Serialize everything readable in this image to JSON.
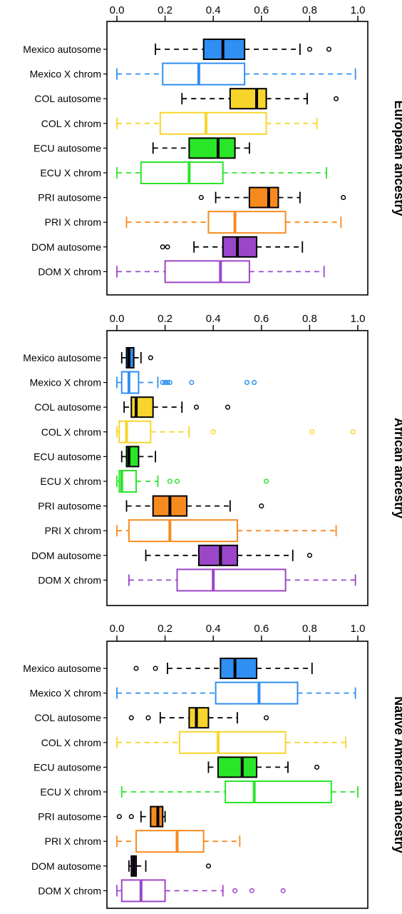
{
  "colors": {
    "Mexico": "#2f8ff2",
    "COL": "#f7d52a",
    "ECU": "#29e629",
    "PRI": "#f78a1f",
    "DOM": "#9b45c9"
  },
  "chart_data": [
    {
      "type": "boxplot",
      "title": "European ancestry",
      "xlim": [
        0,
        1
      ],
      "ticks": [
        "0.0",
        "0.2",
        "0.4",
        "0.6",
        "0.8",
        "1.0"
      ],
      "tick_values": [
        0,
        0.2,
        0.4,
        0.6,
        0.8,
        1.0
      ],
      "rows": [
        {
          "label": "Mexico autosome",
          "group": "Mexico",
          "kind": "autosome",
          "whisker_low": 0.16,
          "q1": 0.36,
          "median": 0.44,
          "q3": 0.53,
          "whisker_high": 0.76,
          "outliers": [
            0.8,
            0.88
          ]
        },
        {
          "label": "Mexico X chrom",
          "group": "Mexico",
          "kind": "X",
          "whisker_low": 0.0,
          "q1": 0.19,
          "median": 0.34,
          "q3": 0.53,
          "whisker_high": 0.99,
          "outliers": []
        },
        {
          "label": "COL autosome",
          "group": "COL",
          "kind": "autosome",
          "whisker_low": 0.27,
          "q1": 0.47,
          "median": 0.58,
          "q3": 0.62,
          "whisker_high": 0.79,
          "outliers": [
            0.91
          ]
        },
        {
          "label": "COL X chrom",
          "group": "COL",
          "kind": "X",
          "whisker_low": 0.0,
          "q1": 0.18,
          "median": 0.37,
          "q3": 0.62,
          "whisker_high": 0.83,
          "outliers": []
        },
        {
          "label": "ECU autosome",
          "group": "ECU",
          "kind": "autosome",
          "whisker_low": 0.15,
          "q1": 0.3,
          "median": 0.42,
          "q3": 0.49,
          "whisker_high": 0.55,
          "outliers": []
        },
        {
          "label": "ECU X chrom",
          "group": "ECU",
          "kind": "X",
          "whisker_low": 0.0,
          "q1": 0.1,
          "median": 0.3,
          "q3": 0.44,
          "whisker_high": 0.87,
          "outliers": []
        },
        {
          "label": "PRI autosome",
          "group": "PRI",
          "kind": "autosome",
          "whisker_low": 0.41,
          "q1": 0.55,
          "median": 0.63,
          "q3": 0.67,
          "whisker_high": 0.76,
          "outliers": [
            0.35,
            0.94
          ]
        },
        {
          "label": "PRI X chrom",
          "group": "PRI",
          "kind": "X",
          "whisker_low": 0.04,
          "q1": 0.38,
          "median": 0.49,
          "q3": 0.7,
          "whisker_high": 0.93,
          "outliers": []
        },
        {
          "label": "DOM autosome",
          "group": "DOM",
          "kind": "autosome",
          "whisker_low": 0.32,
          "q1": 0.44,
          "median": 0.5,
          "q3": 0.58,
          "whisker_high": 0.77,
          "outliers": [
            0.19,
            0.21
          ]
        },
        {
          "label": "DOM X chrom",
          "group": "DOM",
          "kind": "X",
          "whisker_low": 0.0,
          "q1": 0.2,
          "median": 0.43,
          "q3": 0.55,
          "whisker_high": 0.86,
          "outliers": []
        }
      ]
    },
    {
      "type": "boxplot",
      "title": "African ancestry",
      "xlim": [
        0,
        1
      ],
      "ticks": [
        "0.0",
        "0.2",
        "0.4",
        "0.6",
        "0.8",
        "1.0"
      ],
      "tick_values": [
        0,
        0.2,
        0.4,
        0.6,
        0.8,
        1.0
      ],
      "rows": [
        {
          "label": "Mexico autosome",
          "group": "Mexico",
          "kind": "autosome",
          "whisker_low": 0.02,
          "q1": 0.04,
          "median": 0.05,
          "q3": 0.07,
          "whisker_high": 0.1,
          "outliers": [
            0.14
          ]
        },
        {
          "label": "Mexico X chrom",
          "group": "Mexico",
          "kind": "X",
          "whisker_low": 0.0,
          "q1": 0.02,
          "median": 0.05,
          "q3": 0.09,
          "whisker_high": 0.17,
          "outliers": [
            0.19,
            0.2,
            0.21,
            0.22,
            0.31,
            0.54,
            0.57
          ]
        },
        {
          "label": "COL autosome",
          "group": "COL",
          "kind": "autosome",
          "whisker_low": 0.03,
          "q1": 0.06,
          "median": 0.08,
          "q3": 0.15,
          "whisker_high": 0.27,
          "outliers": [
            0.33,
            0.46
          ]
        },
        {
          "label": "COL X chrom",
          "group": "COL",
          "kind": "X",
          "whisker_low": 0.0,
          "q1": 0.01,
          "median": 0.04,
          "q3": 0.14,
          "whisker_high": 0.3,
          "outliers": [
            0.4,
            0.81,
            0.98
          ]
        },
        {
          "label": "ECU autosome",
          "group": "ECU",
          "kind": "autosome",
          "whisker_low": 0.02,
          "q1": 0.04,
          "median": 0.05,
          "q3": 0.09,
          "whisker_high": 0.16,
          "outliers": []
        },
        {
          "label": "ECU X chrom",
          "group": "ECU",
          "kind": "X",
          "whisker_low": 0.0,
          "q1": 0.01,
          "median": 0.02,
          "q3": 0.08,
          "whisker_high": 0.17,
          "outliers": [
            0.22,
            0.25,
            0.62
          ]
        },
        {
          "label": "PRI autosome",
          "group": "PRI",
          "kind": "autosome",
          "whisker_low": 0.04,
          "q1": 0.15,
          "median": 0.22,
          "q3": 0.29,
          "whisker_high": 0.47,
          "outliers": [
            0.6
          ]
        },
        {
          "label": "PRI X chrom",
          "group": "PRI",
          "kind": "X",
          "whisker_low": 0.0,
          "q1": 0.05,
          "median": 0.22,
          "q3": 0.5,
          "whisker_high": 0.91,
          "outliers": []
        },
        {
          "label": "DOM autosome",
          "group": "DOM",
          "kind": "autosome",
          "whisker_low": 0.12,
          "q1": 0.34,
          "median": 0.43,
          "q3": 0.5,
          "whisker_high": 0.73,
          "outliers": [
            0.8
          ]
        },
        {
          "label": "DOM X chrom",
          "group": "DOM",
          "kind": "X",
          "whisker_low": 0.05,
          "q1": 0.25,
          "median": 0.4,
          "q3": 0.7,
          "whisker_high": 0.99,
          "outliers": []
        }
      ]
    },
    {
      "type": "boxplot",
      "title": "Native American ancestry",
      "xlim": [
        0,
        1
      ],
      "ticks": [
        "0.0",
        "0.2",
        "0.4",
        "0.6",
        "0.8",
        "1.0"
      ],
      "tick_values": [
        0,
        0.2,
        0.4,
        0.6,
        0.8,
        1.0
      ],
      "rows": [
        {
          "label": "Mexico autosome",
          "group": "Mexico",
          "kind": "autosome",
          "whisker_low": 0.21,
          "q1": 0.43,
          "median": 0.49,
          "q3": 0.58,
          "whisker_high": 0.81,
          "outliers": [
            0.08,
            0.16
          ]
        },
        {
          "label": "Mexico X chrom",
          "group": "Mexico",
          "kind": "X",
          "whisker_low": 0.0,
          "q1": 0.41,
          "median": 0.59,
          "q3": 0.75,
          "whisker_high": 0.99,
          "outliers": []
        },
        {
          "label": "COL autosome",
          "group": "COL",
          "kind": "autosome",
          "whisker_low": 0.18,
          "q1": 0.3,
          "median": 0.33,
          "q3": 0.38,
          "whisker_high": 0.5,
          "outliers": [
            0.06,
            0.13,
            0.62
          ]
        },
        {
          "label": "COL X chrom",
          "group": "COL",
          "kind": "X",
          "whisker_low": 0.0,
          "q1": 0.26,
          "median": 0.42,
          "q3": 0.7,
          "whisker_high": 0.95,
          "outliers": []
        },
        {
          "label": "ECU autosome",
          "group": "ECU",
          "kind": "autosome",
          "whisker_low": 0.38,
          "q1": 0.42,
          "median": 0.52,
          "q3": 0.58,
          "whisker_high": 0.71,
          "outliers": [
            0.83
          ]
        },
        {
          "label": "ECU X chrom",
          "group": "ECU",
          "kind": "X",
          "whisker_low": 0.02,
          "q1": 0.45,
          "median": 0.57,
          "q3": 0.89,
          "whisker_high": 1.0,
          "outliers": []
        },
        {
          "label": "PRI autosome",
          "group": "PRI",
          "kind": "autosome",
          "whisker_low": 0.1,
          "q1": 0.14,
          "median": 0.17,
          "q3": 0.19,
          "whisker_high": 0.2,
          "outliers": [
            0.01,
            0.06
          ]
        },
        {
          "label": "PRI X chrom",
          "group": "PRI",
          "kind": "X",
          "whisker_low": 0.0,
          "q1": 0.08,
          "median": 0.25,
          "q3": 0.36,
          "whisker_high": 0.51,
          "outliers": []
        },
        {
          "label": "DOM autosome",
          "group": "DOM",
          "kind": "autosome",
          "whisker_low": 0.05,
          "q1": 0.06,
          "median": 0.07,
          "q3": 0.08,
          "whisker_high": 0.12,
          "outliers": [
            0.38
          ]
        },
        {
          "label": "DOM X chrom",
          "group": "DOM",
          "kind": "X",
          "whisker_low": 0.0,
          "q1": 0.02,
          "median": 0.1,
          "q3": 0.2,
          "whisker_high": 0.44,
          "outliers": [
            0.49,
            0.56,
            0.69
          ]
        }
      ]
    }
  ]
}
